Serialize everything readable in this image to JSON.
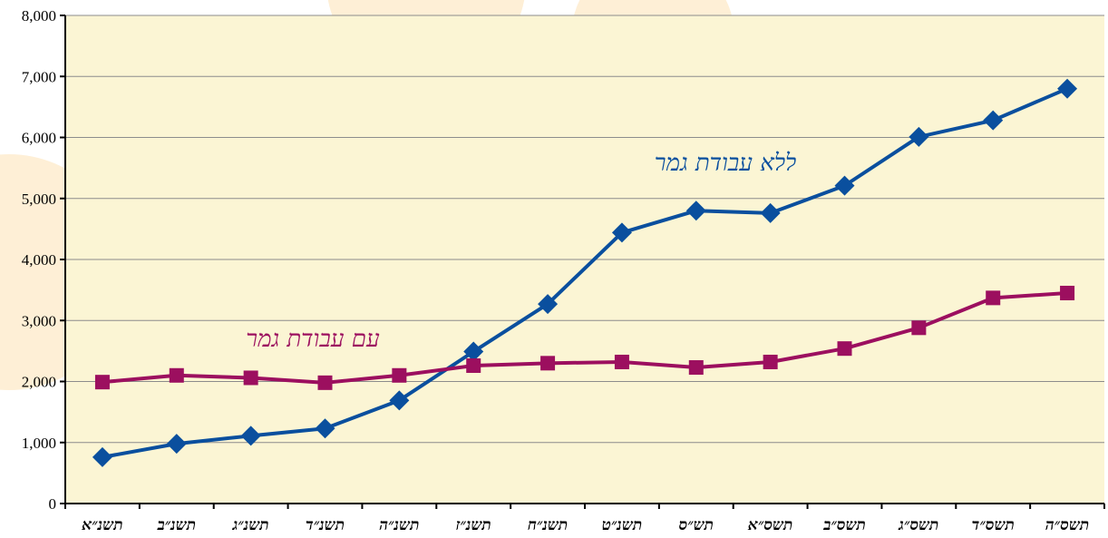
{
  "chart_data": {
    "type": "line",
    "title": "",
    "xlabel": "",
    "ylabel": "",
    "ylim": [
      0,
      8000
    ],
    "yticks": [
      0,
      1000,
      2000,
      3000,
      4000,
      5000,
      6000,
      7000,
      8000
    ],
    "ytick_labels": [
      "0",
      "1,000",
      "2,000",
      "3,000",
      "4,000",
      "5,000",
      "6,000",
      "7,000",
      "8,000"
    ],
    "grid": true,
    "categories": [
      "תשנ״א",
      "תשנ״ב",
      "תשנ״ג",
      "תשנ״ד",
      "תשנ״ה",
      "תשנ״ז",
      "תשנ״ח",
      "תשנ״ט",
      "תש״ס",
      "תשס״א",
      "תשס״ב",
      "תשס״ג",
      "תשס״ד",
      "תשס״ה"
    ],
    "series": [
      {
        "name": "ללא עבודת גמר",
        "color": "#0a4f9e",
        "marker": "diamond",
        "values": [
          760,
          980,
          1110,
          1230,
          1690,
          2490,
          3270,
          4440,
          4800,
          4760,
          5210,
          6010,
          6280,
          6800
        ]
      },
      {
        "name": "עם עבודת גמר",
        "color": "#9c0f5f",
        "marker": "square",
        "values": [
          1990,
          2100,
          2060,
          1980,
          2100,
          2260,
          2300,
          2320,
          2230,
          2320,
          2540,
          2880,
          3370,
          3450
        ]
      }
    ]
  },
  "colors": {
    "plot_background": "#fbf5d4",
    "grid": "#8c8c8c",
    "axis": "#000000",
    "watermark": "#fde2b4"
  }
}
